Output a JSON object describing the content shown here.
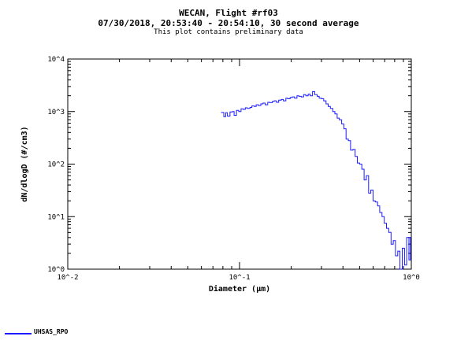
{
  "chart_data": {
    "type": "line",
    "title": "WECAN, Flight #rf03",
    "subtitle": "07/30/2018, 20:53:40 - 20:54:10, 30 second average",
    "note": "This plot contains preliminary data",
    "xlabel": "Diameter (µm)",
    "ylabel": "dN/dlogD (#/cm3)",
    "xscale": "log",
    "yscale": "log",
    "xlim": [
      0.01,
      1.0
    ],
    "ylim": [
      1,
      10000
    ],
    "xticklabels": [
      "10^-2",
      "10^-1",
      "10^0"
    ],
    "yticklabels": [
      "10^0",
      "10^1",
      "10^2",
      "10^3",
      "10^4"
    ],
    "grid": false,
    "legend_position": "bottom-left",
    "series": [
      {
        "name": "UHSAS_RPO",
        "color": "#1a1aff",
        "step": true,
        "x": [
          0.078,
          0.081,
          0.083,
          0.085,
          0.088,
          0.091,
          0.093,
          0.096,
          0.099,
          0.102,
          0.105,
          0.108,
          0.111,
          0.115,
          0.118,
          0.122,
          0.125,
          0.129,
          0.133,
          0.137,
          0.141,
          0.146,
          0.15,
          0.155,
          0.159,
          0.164,
          0.169,
          0.175,
          0.18,
          0.186,
          0.191,
          0.197,
          0.203,
          0.209,
          0.216,
          0.222,
          0.229,
          0.236,
          0.243,
          0.251,
          0.258,
          0.266,
          0.274,
          0.283,
          0.291,
          0.3,
          0.309,
          0.319,
          0.328,
          0.338,
          0.349,
          0.359,
          0.37,
          0.381,
          0.393,
          0.405,
          0.417,
          0.43,
          0.443,
          0.457,
          0.471,
          0.485,
          0.5,
          0.515,
          0.531,
          0.547,
          0.564,
          0.581,
          0.599,
          0.617,
          0.636,
          0.655,
          0.675,
          0.696,
          0.717,
          0.739,
          0.762,
          0.785,
          0.809,
          0.834,
          0.859,
          0.886,
          0.913,
          0.94,
          0.969,
          0.99
        ],
        "y": [
          960,
          800,
          950,
          820,
          980,
          1000,
          850,
          1050,
          1000,
          1130,
          1100,
          1180,
          1150,
          1200,
          1280,
          1250,
          1350,
          1300,
          1400,
          1450,
          1350,
          1500,
          1480,
          1550,
          1600,
          1500,
          1650,
          1700,
          1600,
          1800,
          1750,
          1850,
          1900,
          1800,
          2000,
          1950,
          1900,
          2100,
          2000,
          2150,
          2000,
          2400,
          2100,
          1950,
          1800,
          1750,
          1600,
          1400,
          1250,
          1150,
          1000,
          900,
          750,
          700,
          580,
          470,
          300,
          280,
          185,
          190,
          140,
          105,
          100,
          80,
          50,
          60,
          28,
          32,
          20,
          19,
          16,
          12,
          10,
          7.5,
          6,
          5,
          3,
          3.5,
          1.8,
          2.2,
          1,
          2.5,
          1.2,
          4,
          1.5,
          4
        ]
      }
    ]
  }
}
